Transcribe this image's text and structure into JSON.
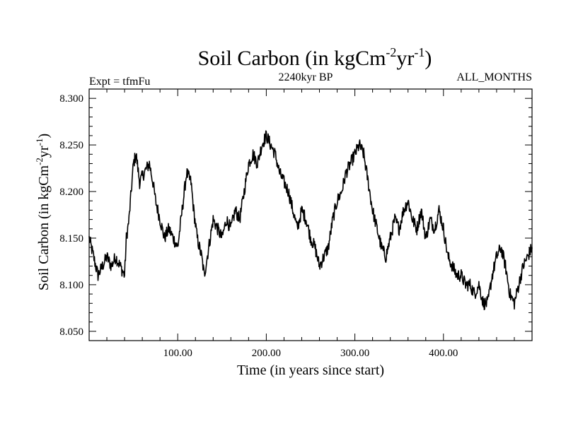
{
  "chart_data": {
    "type": "line",
    "title": {
      "prefix": "Soil Carbon (in kgCm",
      "sup1": "-2",
      "mid": "yr",
      "sup2": "-1",
      "suffix": ")"
    },
    "subtitle_left": "Expt = tfmFu",
    "subtitle_center": "2240kyr BP",
    "subtitle_right": "ALL_MONTHS",
    "xlabel": "Time (in years since start)",
    "ylabel": {
      "prefix": "Soil Carbon (in kgCm",
      "sup1": "-2",
      "mid": "yr",
      "sup2": "-1",
      "suffix": ")"
    },
    "xlim": [
      0,
      500
    ],
    "ylim": [
      8.04,
      8.31
    ],
    "x_ticks": [
      100,
      200,
      300,
      400
    ],
    "x_tick_labels": [
      "100.00",
      "200.00",
      "300.00",
      "400.00"
    ],
    "y_ticks": [
      8.05,
      8.1,
      8.15,
      8.2,
      8.25,
      8.3
    ],
    "y_tick_labels": [
      "8.050",
      "8.100",
      "8.150",
      "8.200",
      "8.250",
      "8.300"
    ],
    "line_color": "#000000",
    "series": [
      {
        "name": "Soil Carbon",
        "x": [
          0,
          5,
          10,
          15,
          20,
          25,
          30,
          35,
          40,
          42,
          45,
          50,
          53,
          57,
          62,
          68,
          72,
          75,
          80,
          85,
          90,
          95,
          100,
          105,
          110,
          115,
          118,
          122,
          127,
          130,
          135,
          140,
          145,
          150,
          155,
          160,
          165,
          170,
          175,
          180,
          185,
          190,
          195,
          200,
          205,
          210,
          215,
          220,
          225,
          230,
          235,
          240,
          245,
          250,
          255,
          260,
          265,
          270,
          275,
          280,
          285,
          290,
          295,
          300,
          305,
          310,
          315,
          320,
          325,
          330,
          335,
          340,
          345,
          350,
          355,
          360,
          365,
          370,
          375,
          380,
          385,
          390,
          395,
          400,
          405,
          410,
          415,
          420,
          425,
          430,
          435,
          440,
          445,
          450,
          455,
          460,
          465,
          470,
          475,
          480,
          485,
          490,
          495,
          500
        ],
        "values": [
          8.15,
          8.13,
          8.11,
          8.12,
          8.13,
          8.12,
          8.13,
          8.12,
          8.11,
          8.15,
          8.17,
          8.23,
          8.24,
          8.21,
          8.22,
          8.23,
          8.21,
          8.19,
          8.17,
          8.15,
          8.16,
          8.15,
          8.14,
          8.18,
          8.22,
          8.21,
          8.18,
          8.15,
          8.13,
          8.11,
          8.14,
          8.17,
          8.16,
          8.15,
          8.17,
          8.16,
          8.18,
          8.17,
          8.2,
          8.23,
          8.24,
          8.23,
          8.25,
          8.26,
          8.25,
          8.24,
          8.22,
          8.21,
          8.2,
          8.18,
          8.16,
          8.18,
          8.17,
          8.15,
          8.14,
          8.12,
          8.13,
          8.14,
          8.17,
          8.19,
          8.2,
          8.22,
          8.23,
          8.24,
          8.25,
          8.24,
          8.21,
          8.18,
          8.16,
          8.14,
          8.13,
          8.15,
          8.17,
          8.16,
          8.18,
          8.19,
          8.17,
          8.16,
          8.18,
          8.15,
          8.17,
          8.16,
          8.18,
          8.16,
          8.13,
          8.12,
          8.11,
          8.11,
          8.1,
          8.1,
          8.09,
          8.1,
          8.08,
          8.08,
          8.11,
          8.13,
          8.14,
          8.12,
          8.09,
          8.08,
          8.1,
          8.12,
          8.13,
          8.14
        ]
      }
    ]
  }
}
